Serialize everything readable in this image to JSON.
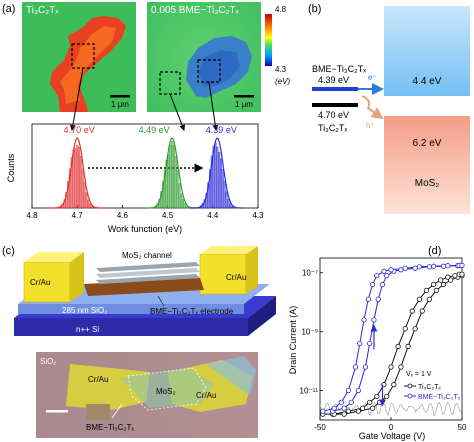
{
  "panel_a": {
    "label": "(a)",
    "map_left_title": "Ti₃C₂Tₓ",
    "map_right_title": "0.005 BME−Ti₃C₂Tₓ",
    "scalebar_left": "1 μm",
    "scalebar_right": "1 μm",
    "colorbar_top": "4.8",
    "colorbar_bottom": "4.3",
    "colorbar_unit": "(eV)"
  },
  "panel_b": {
    "label": "(b)",
    "bme_label": "BME−Ti₃C₂Tₓ",
    "bme_value": "4.39 eV",
    "ti_value": "4.70 eV",
    "ti_label": "Ti₃C₂Tₓ",
    "mos2_upper": "4.4 eV",
    "mos2_lower": "6.2 eV",
    "mos2_label": "MoS₂",
    "electron": "e⁻",
    "hole": "h⁺",
    "colors": {
      "upper_band": "#7ec8f4",
      "lower_band": "#f6b6a0",
      "bme_bar": "#1f3fd0",
      "ti_bar": "#000000",
      "electron_arrow": "#2b7fd8",
      "hole_arrow": "#e8a37a"
    }
  },
  "panel_c": {
    "label": "(c)",
    "channel": "MoS₂ channel",
    "contact_left": "Cr/Au",
    "contact_right": "Cr/Au",
    "oxide": "285 nm SiO₂",
    "substrate": "n++ Si",
    "electrode": "BME−Ti₃C₂Tₓ electrode",
    "photo_sio2": "SiO₂",
    "photo_crau_left": "Cr/Au",
    "photo_mos2": "MoS₂",
    "photo_crau_right": "Cr/Au",
    "photo_bme": "BME−Ti₃C₂Tₓ"
  },
  "chart_data": [
    {
      "type": "histogram",
      "title": "",
      "xlabel": "Work function (eV)",
      "ylabel": "Counts",
      "xlim": [
        4.8,
        4.3
      ],
      "x_reversed": true,
      "ticks": [
        "4.8",
        "4.7",
        "4.6",
        "4.5",
        "4.4",
        "4.3"
      ],
      "series": [
        {
          "peak": 4.7,
          "label": "4.70 eV",
          "color": "#e03030"
        },
        {
          "peak": 4.49,
          "label": "4.49 eV",
          "color": "#2e9a2e"
        },
        {
          "peak": 4.39,
          "label": "4.39 eV",
          "color": "#2a2ad8"
        }
      ]
    },
    {
      "type": "line",
      "label": "(d)",
      "title": "",
      "xlabel": "Gate Voltage (V)",
      "ylabel": "Drain Current (A)",
      "xlim": [
        -50,
        50
      ],
      "ylim_log": [
        -12,
        -6.5
      ],
      "x_ticks": [
        "-50",
        "0",
        "50"
      ],
      "y_ticks": [
        "10⁻¹¹",
        "10⁻⁹",
        "10⁻⁷"
      ],
      "legend_title": "Vₓ = 1 V",
      "legend_position": "right",
      "series": [
        {
          "name": "Ti₃C₂Tₓ",
          "color": "#111111",
          "x": [
            -48,
            -40,
            -30,
            -20,
            -15,
            -10,
            -5,
            0,
            5,
            10,
            15,
            20,
            25,
            30,
            35,
            40,
            45,
            48
          ],
          "log_y": [
            -11.8,
            -11.8,
            -11.7,
            -11.6,
            -11.4,
            -11.2,
            -10.8,
            -10.2,
            -9.5,
            -8.9,
            -8.3,
            -7.9,
            -7.6,
            -7.4,
            -7.25,
            -7.15,
            -7.1,
            -7.05
          ]
        },
        {
          "name": "BME−Ti₃C₂Tₓ",
          "color": "#2a2ad8",
          "x": [
            -48,
            -40,
            -35,
            -30,
            -25,
            -22,
            -19,
            -16,
            -13,
            -10,
            -5,
            0,
            10,
            20,
            30,
            40,
            48
          ],
          "log_y": [
            -11.7,
            -11.6,
            -11.4,
            -11.0,
            -10.2,
            -9.4,
            -8.6,
            -7.9,
            -7.4,
            -7.1,
            -6.95,
            -6.9,
            -6.85,
            -6.8,
            -6.78,
            -6.76,
            -6.75
          ]
        }
      ]
    }
  ]
}
